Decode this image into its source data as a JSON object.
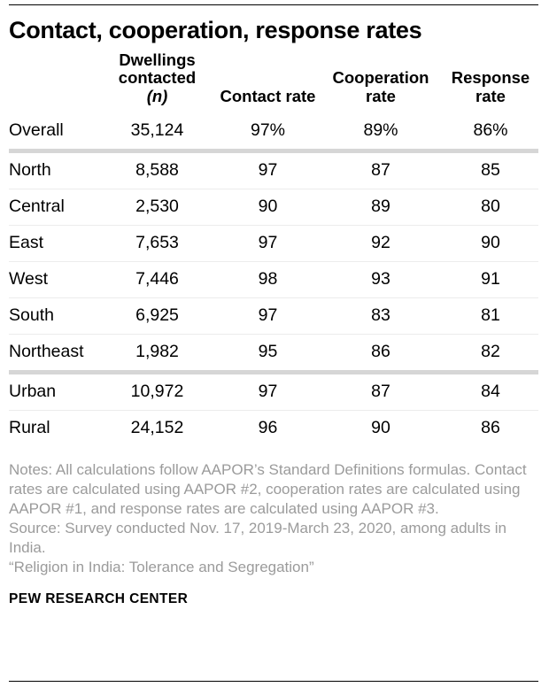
{
  "title": "Contact, cooperation, response rates",
  "chart_data": {
    "type": "table",
    "title": "Contact, cooperation, response rates",
    "columns": [
      {
        "label": "Dwellings contacted",
        "sublabel": "(n)"
      },
      {
        "label": "Contact rate"
      },
      {
        "label": "Cooperation rate"
      },
      {
        "label": "Response rate"
      }
    ],
    "rows": [
      {
        "label": "Overall",
        "group": "overall",
        "values": [
          "35,124",
          "97%",
          "89%",
          "86%"
        ]
      },
      {
        "label": "North",
        "group": "region",
        "values": [
          "8,588",
          "97",
          "87",
          "85"
        ]
      },
      {
        "label": "Central",
        "group": "region",
        "values": [
          "2,530",
          "90",
          "89",
          "80"
        ]
      },
      {
        "label": "East",
        "group": "region",
        "values": [
          "7,653",
          "97",
          "92",
          "90"
        ]
      },
      {
        "label": "West",
        "group": "region",
        "values": [
          "7,446",
          "98",
          "93",
          "91"
        ]
      },
      {
        "label": "South",
        "group": "region",
        "values": [
          "6,925",
          "97",
          "83",
          "81"
        ]
      },
      {
        "label": "Northeast",
        "group": "region",
        "values": [
          "1,982",
          "95",
          "86",
          "82"
        ]
      },
      {
        "label": "Urban",
        "group": "urbanicity",
        "values": [
          "10,972",
          "97",
          "87",
          "84"
        ]
      },
      {
        "label": "Rural",
        "group": "urbanicity",
        "values": [
          "24,152",
          "96",
          "90",
          "86"
        ]
      }
    ]
  },
  "notes": {
    "methods": "Notes: All calculations follow AAPOR’s Standard Definitions formulas. Contact rates are calculated using AAPOR #2, cooperation rates are calculated using AAPOR #1, and response rates are calculated using AAPOR #3.",
    "source": "Source: Survey conducted Nov. 17, 2019-March 23, 2020, among adults in India.",
    "report": "“Religion in India: Tolerance and Segregation”"
  },
  "footer": {
    "brand": "PEW RESEARCH CENTER"
  },
  "colors": {
    "text": "#000000",
    "notes_gray": "#9b9b9b",
    "divider_gray": "#d6d6d6",
    "rule_black": "#000000"
  }
}
